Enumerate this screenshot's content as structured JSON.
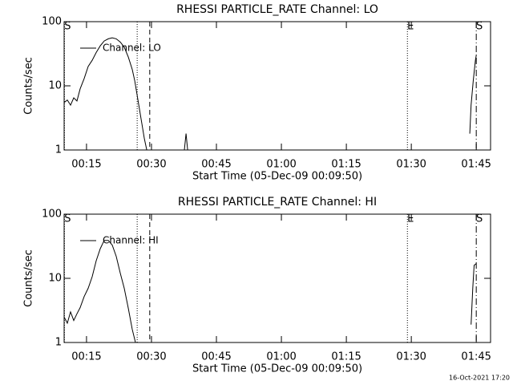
{
  "chart_data": [
    {
      "type": "line",
      "title": "RHESSI PARTICLE_RATE Channel: LO",
      "xlabel": "Start Time (05-Dec-09 00:09:50)",
      "ylabel": "Counts/sec",
      "log_y": true,
      "xlim": [
        9.83,
        108.3
      ],
      "ylim": [
        1,
        100
      ],
      "xticks": [
        {
          "value": 15,
          "label": "00:15"
        },
        {
          "value": 30,
          "label": "00:30"
        },
        {
          "value": 45,
          "label": "00:45"
        },
        {
          "value": 60,
          "label": "01:00"
        },
        {
          "value": 75,
          "label": "01:15"
        },
        {
          "value": 90,
          "label": "01:30"
        },
        {
          "value": 105,
          "label": "01:45"
        }
      ],
      "yticks": [
        1,
        10,
        100
      ],
      "x": [
        9.83,
        10.57,
        11.31,
        12.05,
        12.8,
        13.54,
        14.46,
        15.39,
        16.31,
        17.24,
        18.17,
        19.09,
        20.02,
        20.94,
        21.87,
        22.8,
        23.72,
        24.65,
        25.57,
        26.13,
        26.87,
        27.61,
        28.35,
        28.91,
        33.0,
        37.6,
        37.98,
        38.35,
        60.0,
        103.5,
        103.8,
        104.3,
        104.8,
        105.0
      ],
      "series": [
        {
          "name": "Channel: LO",
          "color": "#000000",
          "values": [
            5.5,
            6,
            5,
            6.5,
            5.8,
            9,
            13,
            20,
            25,
            33,
            42,
            50,
            54,
            56,
            54,
            48,
            40,
            28,
            18,
            12,
            6,
            3,
            1.5,
            1.0,
            null,
            1.0,
            1.8,
            1.0,
            null,
            1.8,
            5,
            12,
            25,
            30
          ]
        }
      ],
      "markers": [
        {
          "x": 9.9,
          "label": "S",
          "style": "dotted"
        },
        {
          "x": 26.7,
          "style": "dotted"
        },
        {
          "x": 29.6,
          "style": "dashed"
        },
        {
          "x": 89.1,
          "label": "E",
          "style": "dotted"
        },
        {
          "x": 105.0,
          "label": "S",
          "style": "dashdot"
        }
      ]
    },
    {
      "type": "line",
      "title": "RHESSI PARTICLE_RATE Channel: HI",
      "xlabel": "Start Time (05-Dec-09 00:09:50)",
      "ylabel": "Counts/sec",
      "log_y": true,
      "xlim": [
        9.83,
        108.3
      ],
      "ylim": [
        1,
        100
      ],
      "xticks": [
        {
          "value": 15,
          "label": "00:15"
        },
        {
          "value": 30,
          "label": "00:30"
        },
        {
          "value": 45,
          "label": "00:45"
        },
        {
          "value": 60,
          "label": "01:00"
        },
        {
          "value": 75,
          "label": "01:15"
        },
        {
          "value": 90,
          "label": "01:30"
        },
        {
          "value": 105,
          "label": "01:45"
        }
      ],
      "yticks": [
        1,
        10,
        100
      ],
      "x": [
        9.83,
        10.57,
        11.31,
        12.05,
        12.8,
        13.54,
        14.46,
        15.39,
        16.31,
        17.24,
        18.17,
        19.09,
        20.02,
        20.94,
        21.87,
        22.8,
        23.72,
        24.65,
        25.57,
        26.31,
        60.0,
        103.8,
        104.2,
        104.5,
        105.0
      ],
      "series": [
        {
          "name": "Channel: HI",
          "color": "#000000",
          "values": [
            2.5,
            2.0,
            3.0,
            2.2,
            2.8,
            3.5,
            5.2,
            7,
            10.6,
            18.8,
            29,
            39,
            39,
            33,
            22,
            12,
            7,
            3.4,
            1.6,
            1.0,
            null,
            1.9,
            7,
            16,
            17
          ]
        }
      ],
      "markers": [
        {
          "x": 9.9,
          "label": "S",
          "style": "dotted"
        },
        {
          "x": 26.7,
          "style": "dotted"
        },
        {
          "x": 29.6,
          "style": "dashed"
        },
        {
          "x": 89.1,
          "label": "E",
          "style": "dotted"
        },
        {
          "x": 105.0,
          "label": "S",
          "style": "dashdot"
        }
      ]
    }
  ],
  "footer": "16-Oct-2021 17:20"
}
